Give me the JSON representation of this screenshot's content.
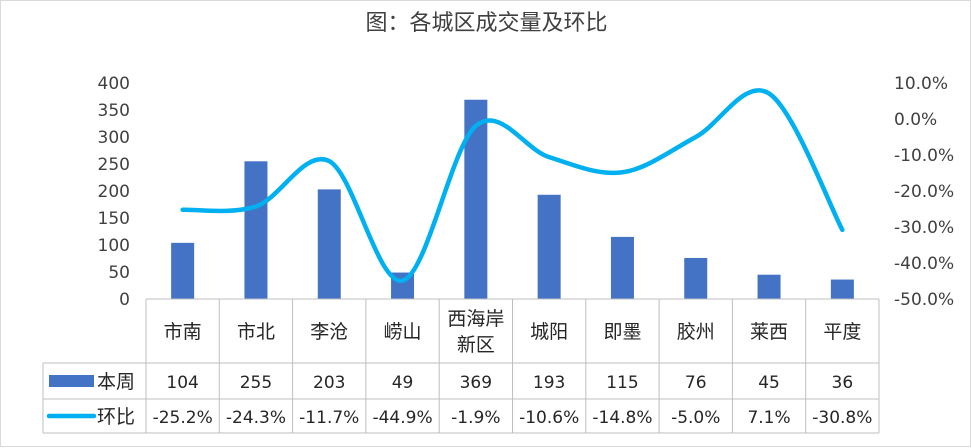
{
  "chart_data": {
    "type": "bar",
    "title": "图：各城区成交量及环比",
    "categories": [
      "市南",
      "市北",
      "李沧",
      "崂山",
      "西海岸新区",
      "城阳",
      "即墨",
      "胶州",
      "莱西",
      "平度"
    ],
    "category_lines": [
      [
        "市南"
      ],
      [
        "市北"
      ],
      [
        "李沧"
      ],
      [
        "崂山"
      ],
      [
        "西海岸",
        "新区"
      ],
      [
        "城阳"
      ],
      [
        "即墨"
      ],
      [
        "胶州"
      ],
      [
        "莱西"
      ],
      [
        "平度"
      ]
    ],
    "series": [
      {
        "name": "本周",
        "type": "bar",
        "axis": "left",
        "color": "#4472C4",
        "values": [
          104,
          255,
          203,
          49,
          369,
          193,
          115,
          76,
          45,
          36
        ],
        "labels": [
          "104",
          "255",
          "203",
          "49",
          "369",
          "193",
          "115",
          "76",
          "45",
          "36"
        ]
      },
      {
        "name": "环比",
        "type": "line",
        "axis": "right",
        "color": "#00B0F0",
        "values": [
          -25.2,
          -24.3,
          -11.7,
          -44.9,
          -1.9,
          -10.6,
          -14.8,
          -5.0,
          7.1,
          -30.8
        ],
        "labels": [
          "-25.2%",
          "-24.3%",
          "-11.7%",
          "-44.9%",
          "-1.9%",
          "-10.6%",
          "-14.8%",
          "-5.0%",
          "7.1%",
          "-30.8%"
        ]
      }
    ],
    "y_left": {
      "range": [
        0,
        400
      ],
      "ticks": [
        0,
        50,
        100,
        150,
        200,
        250,
        300,
        350,
        400
      ],
      "tick_labels": [
        "0",
        "50",
        "100",
        "150",
        "200",
        "250",
        "300",
        "350",
        "400"
      ]
    },
    "y_right": {
      "range": [
        -50,
        10
      ],
      "ticks": [
        -50,
        -40,
        -30,
        -20,
        -10,
        0,
        10
      ],
      "tick_labels": [
        "-50.0%",
        "-40.0%",
        "-30.0%",
        "-20.0%",
        "-10.0%",
        "0.0%",
        "10.0%"
      ]
    },
    "grid": false,
    "data_table": true,
    "legend": "data-table"
  }
}
